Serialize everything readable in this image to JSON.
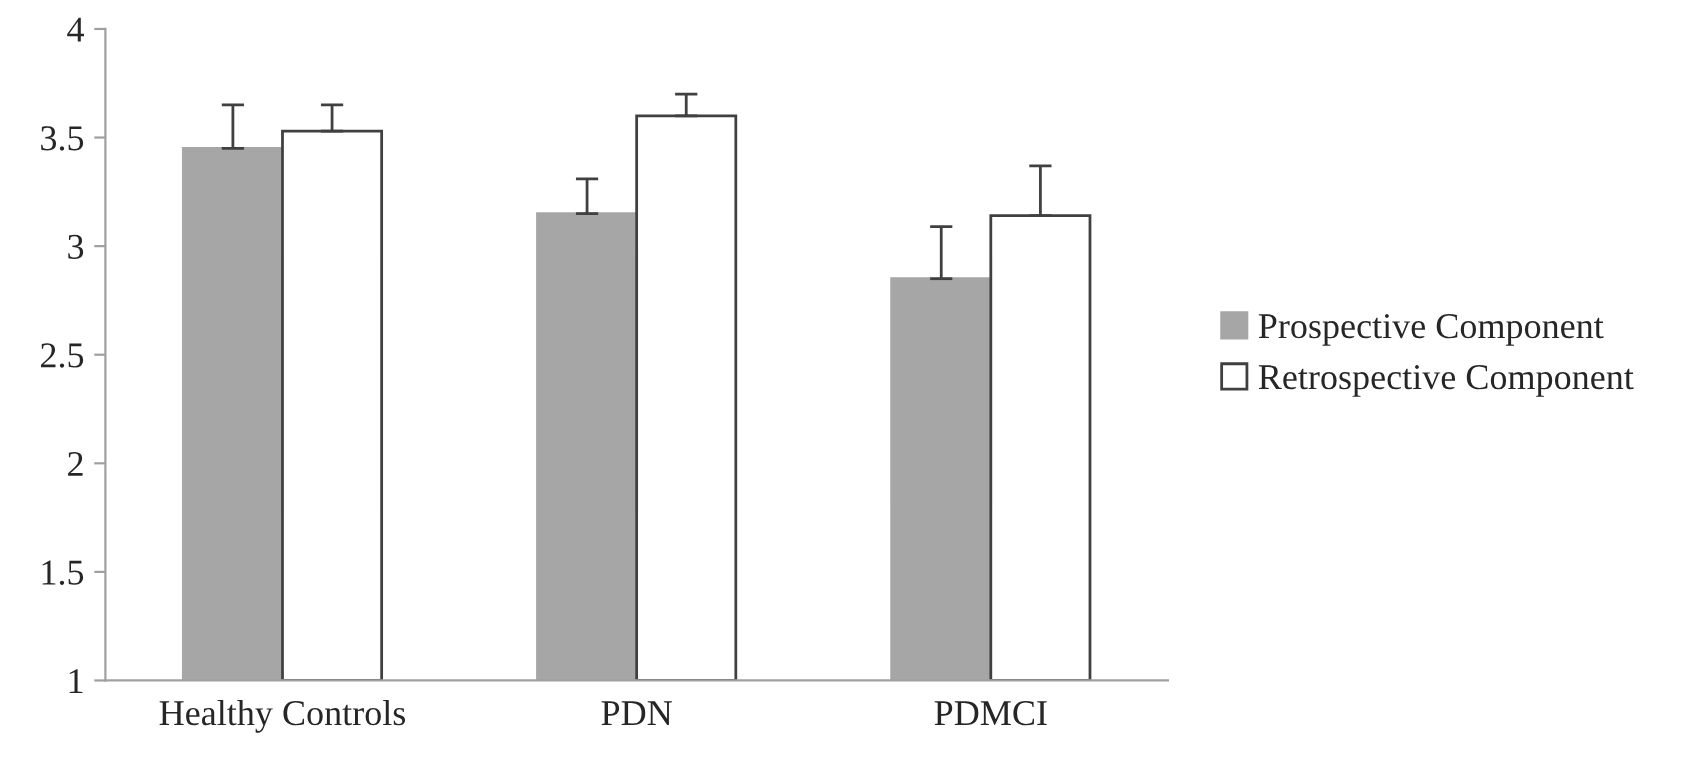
{
  "chart_data": {
    "type": "bar",
    "categories": [
      "Healthy Controls",
      "PDN",
      "PDMCI"
    ],
    "series": [
      {
        "name": "Prospective Component",
        "color": "#a6a6a6",
        "values": [
          3.45,
          3.15,
          2.85
        ],
        "errors": [
          [
            3.45,
            3.65
          ],
          [
            3.15,
            3.31
          ],
          [
            2.85,
            3.09
          ]
        ]
      },
      {
        "name": "Retrospective Component",
        "color": "#ffffff",
        "values": [
          3.53,
          3.6,
          3.14
        ],
        "errors": [
          [
            3.53,
            3.65
          ],
          [
            3.6,
            3.7
          ],
          [
            3.14,
            3.37
          ]
        ]
      }
    ],
    "ylim": [
      1,
      4
    ],
    "yticks": [
      1,
      1.5,
      2,
      2.5,
      3,
      3.5,
      4
    ],
    "grid": false,
    "legend": "right"
  }
}
